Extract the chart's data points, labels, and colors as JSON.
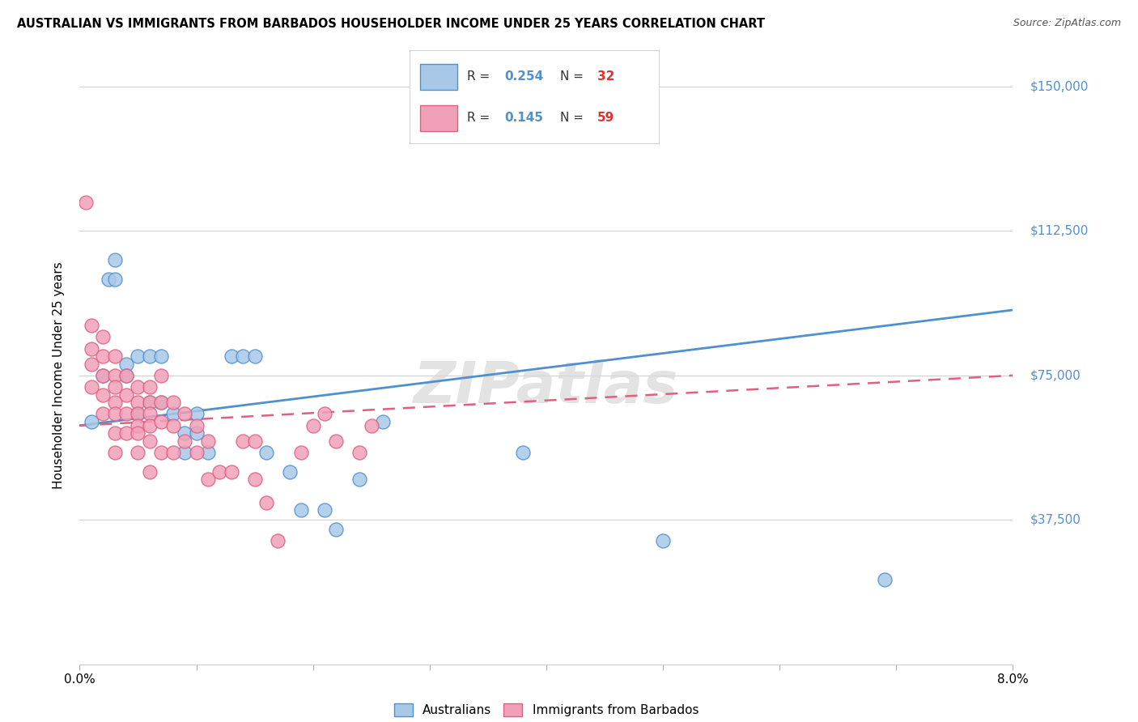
{
  "title": "AUSTRALIAN VS IMMIGRANTS FROM BARBADOS HOUSEHOLDER INCOME UNDER 25 YEARS CORRELATION CHART",
  "source": "Source: ZipAtlas.com",
  "ylabel": "Householder Income Under 25 years",
  "xlim": [
    0.0,
    0.08
  ],
  "ylim": [
    0,
    150000
  ],
  "yticks": [
    0,
    37500,
    75000,
    112500,
    150000
  ],
  "color_blue": "#a8c8e8",
  "color_pink": "#f0a0b8",
  "line_blue": "#5090d0",
  "line_pink": "#e06080",
  "line_pink_dash": "#d07090",
  "watermark": "ZIPatlas",
  "legend_r1": "0.254",
  "legend_n1": "32",
  "legend_r2": "0.145",
  "legend_n2": "59",
  "aus_r": 0.254,
  "bar_r": 0.145,
  "australians_x": [
    0.001,
    0.002,
    0.0025,
    0.003,
    0.003,
    0.004,
    0.004,
    0.005,
    0.005,
    0.006,
    0.006,
    0.007,
    0.007,
    0.008,
    0.009,
    0.009,
    0.01,
    0.01,
    0.011,
    0.013,
    0.014,
    0.015,
    0.016,
    0.018,
    0.019,
    0.021,
    0.022,
    0.024,
    0.026,
    0.038,
    0.05,
    0.069
  ],
  "australians_y": [
    63000,
    75000,
    100000,
    105000,
    100000,
    78000,
    75000,
    65000,
    80000,
    80000,
    68000,
    80000,
    68000,
    65000,
    60000,
    55000,
    65000,
    60000,
    55000,
    80000,
    80000,
    80000,
    55000,
    50000,
    40000,
    40000,
    35000,
    48000,
    63000,
    55000,
    32000,
    22000
  ],
  "barbados_x": [
    0.0005,
    0.001,
    0.001,
    0.001,
    0.001,
    0.002,
    0.002,
    0.002,
    0.002,
    0.002,
    0.003,
    0.003,
    0.003,
    0.003,
    0.003,
    0.003,
    0.003,
    0.004,
    0.004,
    0.004,
    0.004,
    0.005,
    0.005,
    0.005,
    0.005,
    0.005,
    0.005,
    0.006,
    0.006,
    0.006,
    0.006,
    0.006,
    0.006,
    0.007,
    0.007,
    0.007,
    0.007,
    0.008,
    0.008,
    0.008,
    0.009,
    0.009,
    0.01,
    0.01,
    0.011,
    0.011,
    0.012,
    0.013,
    0.014,
    0.015,
    0.015,
    0.016,
    0.017,
    0.019,
    0.02,
    0.021,
    0.022,
    0.024,
    0.025
  ],
  "barbados_y": [
    120000,
    88000,
    82000,
    78000,
    72000,
    85000,
    80000,
    75000,
    70000,
    65000,
    80000,
    75000,
    72000,
    68000,
    65000,
    60000,
    55000,
    75000,
    70000,
    65000,
    60000,
    72000,
    68000,
    65000,
    62000,
    60000,
    55000,
    72000,
    68000,
    65000,
    62000,
    58000,
    50000,
    75000,
    68000,
    63000,
    55000,
    68000,
    62000,
    55000,
    65000,
    58000,
    62000,
    55000,
    58000,
    48000,
    50000,
    50000,
    58000,
    58000,
    48000,
    42000,
    32000,
    55000,
    62000,
    65000,
    58000,
    55000,
    62000
  ]
}
